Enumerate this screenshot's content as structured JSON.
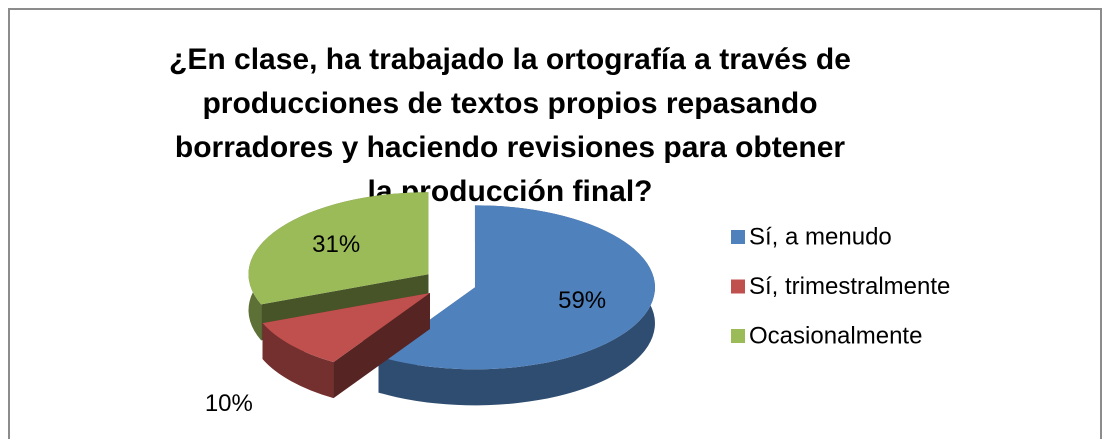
{
  "chart_data": {
    "type": "pie3d",
    "title": "¿En clase, ha trabajado la ortografía a través de producciones de textos propios repasando borradores y haciendo revisiones para obtener la producción final?",
    "categories": [
      "Sí, a menudo",
      "Sí, trimestralmente",
      "Ocasionalmente"
    ],
    "values": [
      59,
      10,
      31
    ],
    "value_labels": [
      "59%",
      "10%",
      "31%"
    ],
    "colors": [
      "#4f81bd",
      "#c0504d",
      "#9bbb59"
    ],
    "legend": "right"
  }
}
